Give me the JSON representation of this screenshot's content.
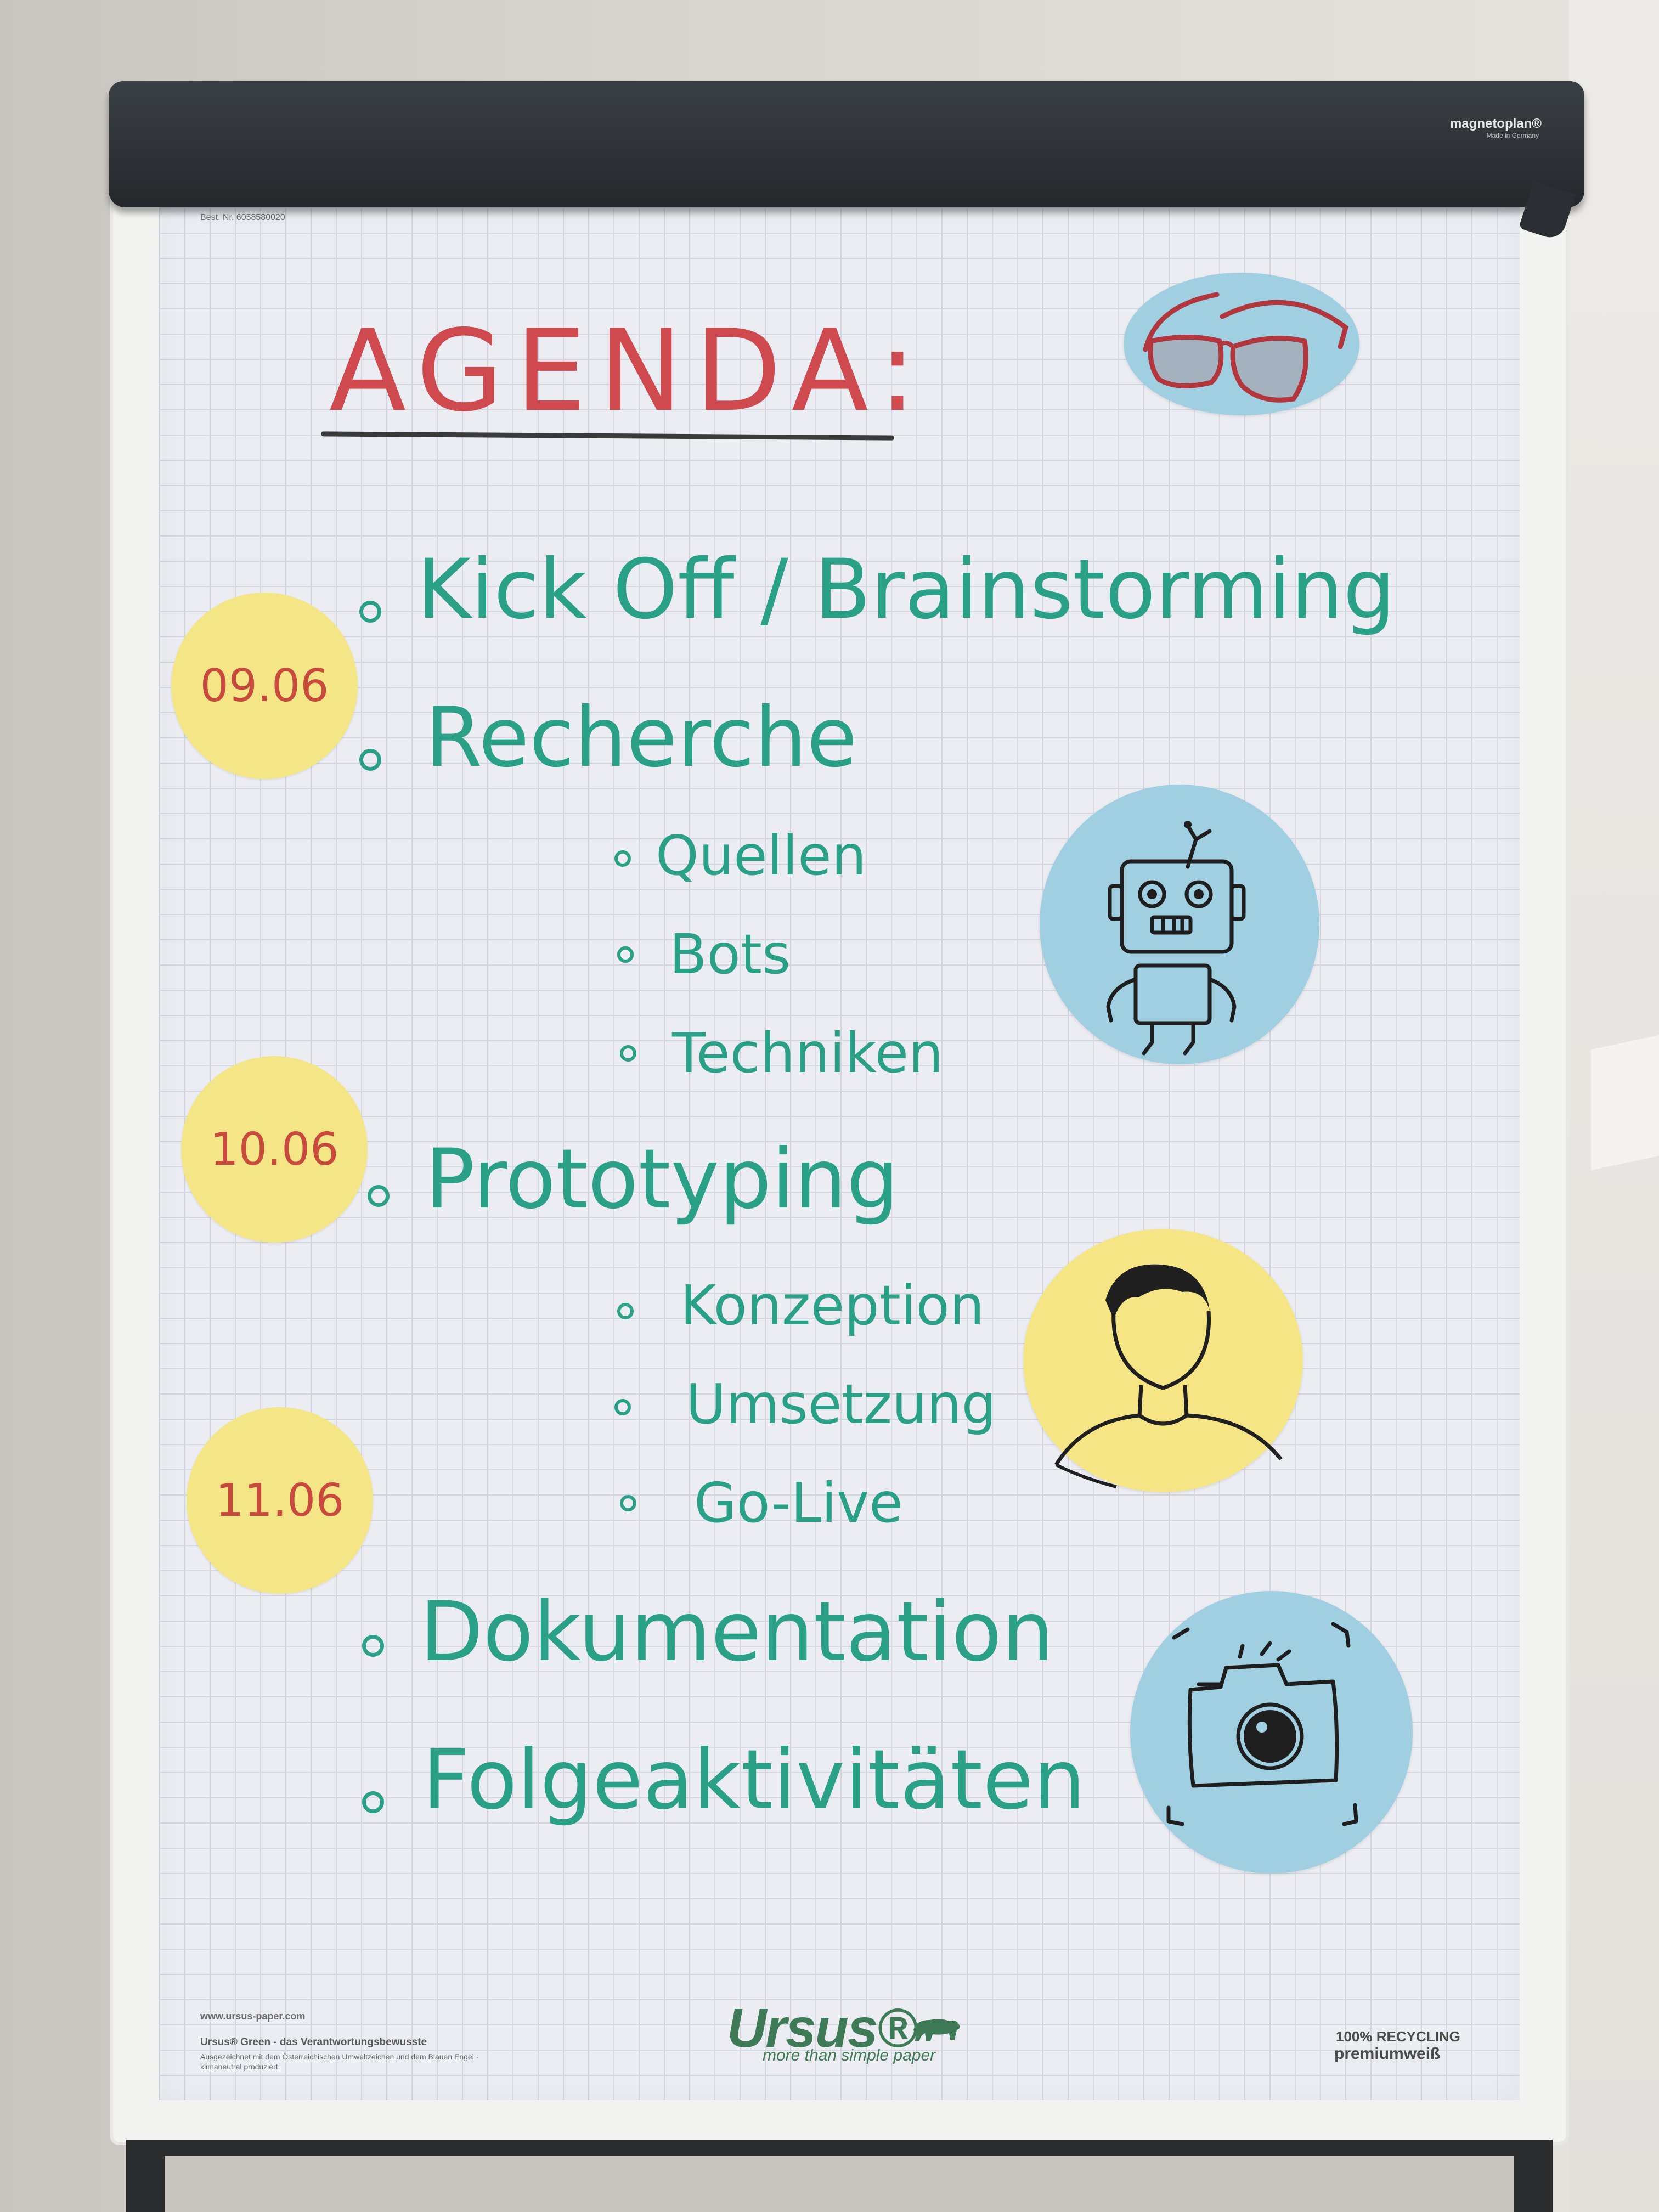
{
  "flipchart": {
    "brand": "magnetoplan®",
    "brand_sub": "Made in Germany",
    "order_number": "Best. Nr. 6058580020"
  },
  "agenda": {
    "title": "AGENDA:",
    "items": [
      {
        "label": "Kick Off / Brainstorming"
      },
      {
        "label": "Recherche",
        "subitems": [
          "Quellen",
          "Bots",
          "Techniken"
        ]
      },
      {
        "label": "Prototyping",
        "subitems": [
          "Konzeption",
          "Umsetzung",
          "Go-Live"
        ]
      },
      {
        "label": "Dokumentation"
      },
      {
        "label": "Folgeaktivitäten"
      }
    ],
    "dates": [
      "09.06",
      "10.06",
      "11.06"
    ]
  },
  "icons": [
    "glasses-icon",
    "robot-icon",
    "person-icon",
    "camera-icon"
  ],
  "paper_footer": {
    "url": "www.ursus-paper.com",
    "green_line": "Ursus® Green - das Verantwortungsbewusste",
    "small_text": "Ausgezeichnet mit dem Österreichischen Umweltzeichen und dem Blauen Engel · klimaneutral produziert.",
    "logo": "Ursus®",
    "tagline": "more than simple paper",
    "recycling": "100% RECYCLING",
    "paper_type": "premiumweiß"
  },
  "colors": {
    "title_red": "#cf4a4e",
    "marker_teal": "#2aa086",
    "date_red": "#c84a3c",
    "sticker_yellow": "#f4e686",
    "sticker_blue": "#9fcfe1"
  }
}
